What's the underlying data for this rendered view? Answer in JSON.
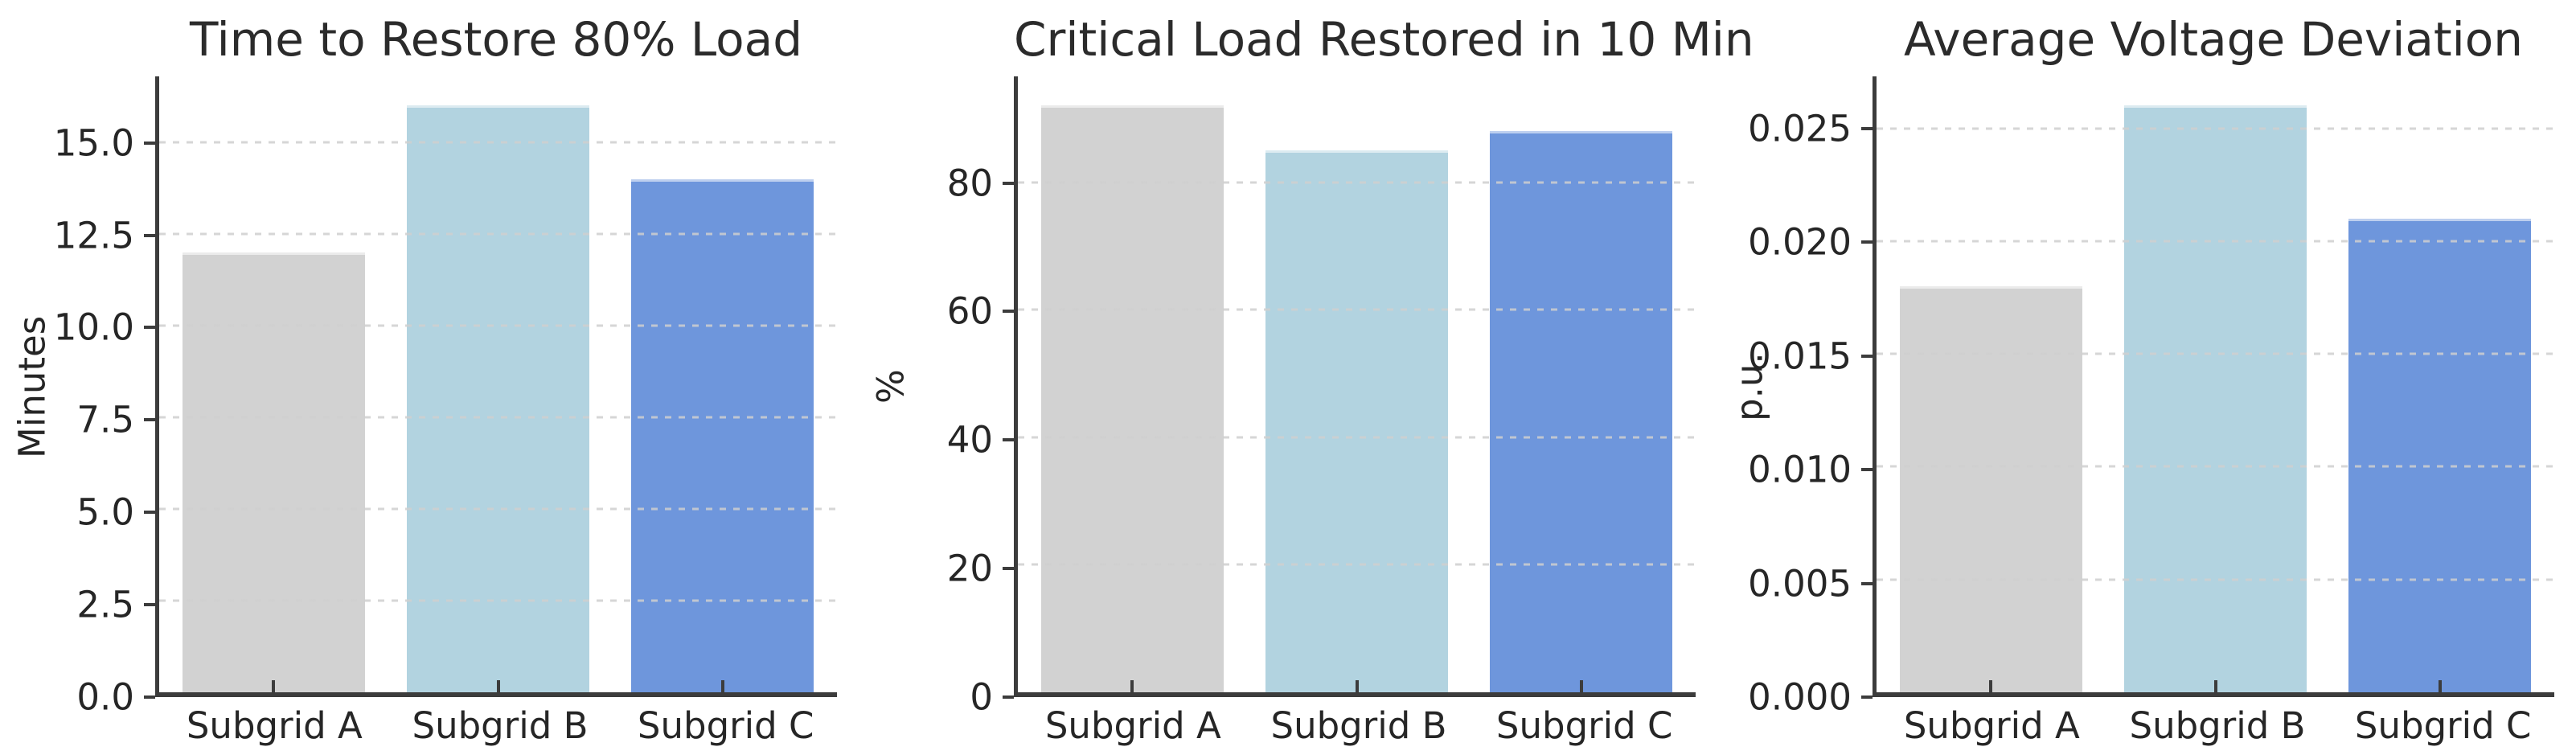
{
  "colors": {
    "background": "#ffffff",
    "bars": [
      "#d2d2d2",
      "#b2d3e0",
      "#6e96dc"
    ],
    "grid": "#cfcfcf",
    "spine": "#3c3c3c",
    "text": "#262626"
  },
  "chart_data": [
    {
      "type": "bar",
      "title": "Time to Restore 80% Load",
      "ylabel": "Minutes",
      "xlabel": "",
      "categories": [
        "Subgrid A",
        "Subgrid B",
        "Subgrid C"
      ],
      "values": [
        12,
        16,
        14
      ],
      "bar_colors": [
        "#d2d2d2",
        "#b2d3e0",
        "#6e96dc"
      ],
      "yticks": [
        0.0,
        2.5,
        5.0,
        7.5,
        10.0,
        12.5,
        15.0
      ],
      "ytick_labels": [
        "0.0",
        "2.5",
        "5.0",
        "7.5",
        "10.0",
        "12.5",
        "15.0"
      ],
      "ylim": [
        0,
        16.8
      ],
      "grid": "horizontal-dashed",
      "legend": "none"
    },
    {
      "type": "bar",
      "title": "Critical Load Restored in 10 Min",
      "ylabel": "%",
      "xlabel": "",
      "categories": [
        "Subgrid A",
        "Subgrid B",
        "Subgrid C"
      ],
      "values": [
        92,
        85,
        88
      ],
      "bar_colors": [
        "#d2d2d2",
        "#b2d3e0",
        "#6e96dc"
      ],
      "yticks": [
        0,
        20,
        40,
        60,
        80
      ],
      "ytick_labels": [
        "0",
        "20",
        "40",
        "60",
        "80"
      ],
      "ylim": [
        0,
        96.6
      ],
      "grid": "horizontal-dashed",
      "legend": "none"
    },
    {
      "type": "bar",
      "title": "Average Voltage Deviation",
      "ylabel": "p.u.",
      "xlabel": "",
      "categories": [
        "Subgrid A",
        "Subgrid B",
        "Subgrid C"
      ],
      "values": [
        0.018,
        0.026,
        0.021
      ],
      "bar_colors": [
        "#d2d2d2",
        "#b2d3e0",
        "#6e96dc"
      ],
      "yticks": [
        0.0,
        0.005,
        0.01,
        0.015,
        0.02,
        0.025
      ],
      "ytick_labels": [
        "0.000",
        "0.005",
        "0.010",
        "0.015",
        "0.020",
        "0.025"
      ],
      "ylim": [
        0,
        0.0273
      ],
      "grid": "horizontal-dashed",
      "legend": "none"
    }
  ]
}
